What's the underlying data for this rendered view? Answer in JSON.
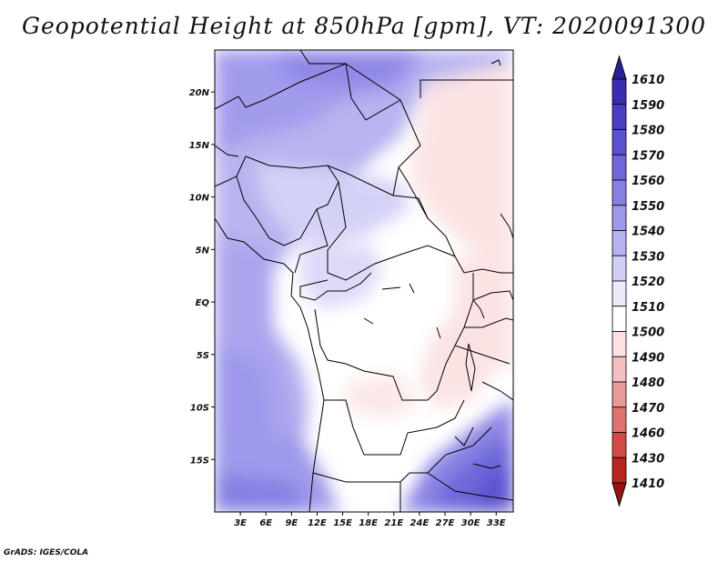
{
  "title": "Geopotential Height at 850hPa [gpm], VT: 2020091300",
  "credit": "GrADS: IGES/COLA",
  "map": {
    "lon_range": [
      0,
      35
    ],
    "lat_range": [
      -20,
      24
    ],
    "lat_ticks": [
      "20N",
      "15N",
      "10N",
      "5N",
      "EQ",
      "5S",
      "10S",
      "15S"
    ],
    "lon_ticks": [
      "3E",
      "6E",
      "9E",
      "12E",
      "15E",
      "18E",
      "21E",
      "24E",
      "27E",
      "30E",
      "33E"
    ]
  },
  "colorbar": {
    "levels": [
      "1610",
      "1590",
      "1580",
      "1570",
      "1560",
      "1550",
      "1540",
      "1530",
      "1520",
      "1510",
      "1500",
      "1490",
      "1480",
      "1470",
      "1460",
      "1430",
      "1410"
    ],
    "colors": [
      "#2b1f9a",
      "#3a2db0",
      "#4a3ec2",
      "#5b52cf",
      "#6e66da",
      "#8680e3",
      "#9d98ea",
      "#b6b2f0",
      "#d2cff6",
      "#ebe9fb",
      "#ffffff",
      "#fbe1e1",
      "#f4c0bf",
      "#e99a98",
      "#de7370",
      "#d04a46",
      "#b82622",
      "#9a1210"
    ]
  }
}
